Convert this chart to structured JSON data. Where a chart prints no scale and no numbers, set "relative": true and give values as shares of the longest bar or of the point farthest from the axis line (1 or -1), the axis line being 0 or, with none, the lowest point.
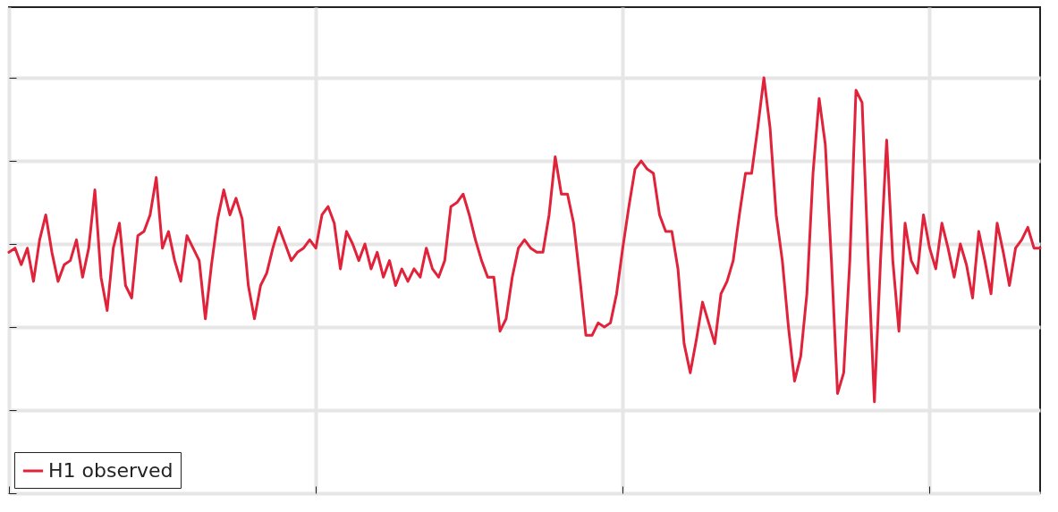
{
  "chart_data": {
    "type": "line",
    "relative": true,
    "grid": true,
    "legend": "bottom left",
    "tick_labels": false,
    "line_style": "solid",
    "categories": [
      null,
      null,
      null,
      null,
      null,
      null,
      null,
      null,
      null,
      null,
      null,
      null,
      null,
      null,
      null,
      null,
      null,
      null,
      null,
      null,
      null,
      null,
      null,
      null,
      null,
      null,
      null,
      null,
      null,
      null,
      null,
      null,
      null,
      null,
      null,
      null,
      null,
      null,
      null,
      null,
      null,
      null,
      null,
      null,
      null,
      null,
      null,
      null,
      null,
      null,
      null,
      null,
      null,
      null,
      null,
      null,
      null,
      null,
      null,
      null,
      null,
      null,
      null,
      null,
      null,
      null,
      null,
      null,
      null,
      null,
      null,
      null,
      null,
      null,
      null,
      null,
      null,
      null,
      null,
      null,
      null,
      null,
      null,
      null,
      null,
      null,
      null,
      null,
      null,
      null,
      null,
      null,
      null,
      null,
      null,
      null,
      null,
      null,
      null,
      null,
      null,
      null,
      null,
      null,
      null,
      null,
      null,
      null,
      null,
      null,
      null,
      null,
      null,
      null,
      null,
      null,
      null,
      null,
      null,
      null,
      null,
      null,
      null,
      null,
      null,
      null,
      null,
      null,
      null,
      null,
      null,
      null,
      null,
      null,
      null,
      null,
      null,
      null,
      null,
      null,
      null,
      null,
      null,
      null,
      null,
      null,
      null,
      null,
      null,
      null,
      null,
      null,
      null,
      null,
      null,
      null,
      null,
      null,
      null,
      null,
      null,
      null,
      null,
      null,
      null,
      null,
      null,
      null,
      null
    ],
    "series": [
      {
        "name": "H1 observed",
        "color": "#e0223a",
        "values": [
          0.58,
          0.59,
          0.55,
          0.59,
          0.51,
          0.61,
          0.67,
          0.58,
          0.51,
          0.55,
          0.56,
          0.61,
          0.52,
          0.59,
          0.73,
          0.52,
          0.44,
          0.59,
          0.65,
          0.5,
          0.47,
          0.62,
          0.63,
          0.67,
          0.76,
          0.59,
          0.63,
          0.56,
          0.51,
          0.62,
          0.59,
          0.56,
          0.42,
          0.55,
          0.66,
          0.73,
          0.67,
          0.71,
          0.66,
          0.5,
          0.42,
          0.5,
          0.53,
          0.59,
          0.64,
          0.6,
          0.56,
          0.58,
          0.59,
          0.61,
          0.59,
          0.67,
          0.69,
          0.65,
          0.54,
          0.63,
          0.6,
          0.56,
          0.6,
          0.54,
          0.58,
          0.52,
          0.56,
          0.5,
          0.54,
          0.51,
          0.54,
          0.52,
          0.59,
          0.54,
          0.52,
          0.56,
          0.69,
          0.7,
          0.72,
          0.67,
          0.61,
          0.56,
          0.52,
          0.52,
          0.39,
          0.42,
          0.52,
          0.59,
          0.61,
          0.59,
          0.58,
          0.58,
          0.67,
          0.81,
          0.72,
          0.72,
          0.65,
          0.52,
          0.38,
          0.38,
          0.41,
          0.4,
          0.41,
          0.48,
          0.59,
          0.69,
          0.78,
          0.8,
          0.78,
          0.77,
          0.67,
          0.63,
          0.63,
          0.54,
          0.36,
          0.29,
          0.37,
          0.46,
          0.41,
          0.36,
          0.48,
          0.51,
          0.56,
          0.67,
          0.77,
          0.77,
          0.88,
          1.0,
          0.88,
          0.67,
          0.56,
          0.4,
          0.27,
          0.33,
          0.48,
          0.77,
          0.95,
          0.84,
          0.56,
          0.24,
          0.29,
          0.56,
          0.97,
          0.94,
          0.56,
          0.22,
          0.56,
          0.85,
          0.56,
          0.39,
          0.65,
          0.56,
          0.53,
          0.67,
          0.59,
          0.54,
          0.65,
          0.59,
          0.52,
          0.6,
          0.55,
          0.47,
          0.63,
          0.56,
          0.48,
          0.65,
          0.58,
          0.5,
          0.59,
          0.61,
          0.64,
          0.59,
          0.59
        ]
      }
    ]
  }
}
